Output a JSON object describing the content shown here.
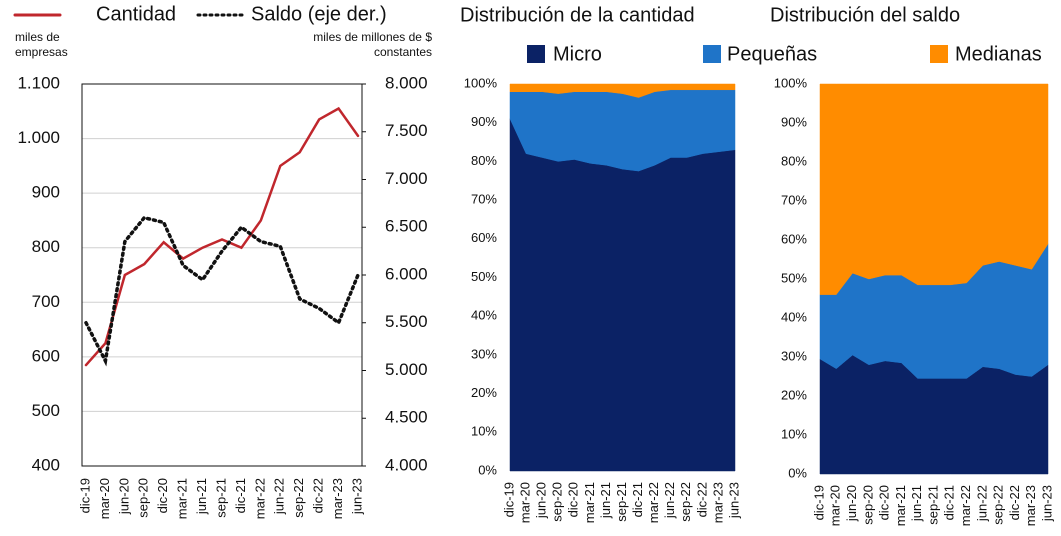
{
  "chart_data": [
    {
      "type": "line",
      "legend": "top-left",
      "y_label": "miles de empresas",
      "y2_label": "miles de millones de $ constantes",
      "categories": [
        "dic-19",
        "mar-20",
        "jun-20",
        "sep-20",
        "dic-20",
        "mar-21",
        "jun-21",
        "sep-21",
        "dic-21",
        "mar-22",
        "jun-22",
        "sep-22",
        "dic-22",
        "mar-23",
        "jun-23"
      ],
      "series": [
        {
          "name": "Cantidad",
          "color": "#c0272d",
          "style": "solid",
          "values": [
            585,
            625,
            750,
            770,
            810,
            780,
            800,
            815,
            800,
            850,
            950,
            975,
            1035,
            1055,
            1005
          ]
        },
        {
          "name": "Saldo (eje der.)",
          "color": "#111111",
          "style": "dotted",
          "axis": "y2",
          "values": [
            5500,
            5100,
            6350,
            6600,
            6550,
            6100,
            5950,
            6250,
            6500,
            6350,
            6300,
            5750,
            5650,
            5500,
            6000
          ]
        }
      ],
      "ylim": [
        400,
        1100
      ],
      "yticks": [
        400,
        500,
        600,
        700,
        800,
        900,
        {
          "value": 1000,
          "label": "1.000"
        },
        {
          "value": 1100,
          "label": "1.100"
        }
      ],
      "y2lim": [
        4000,
        8000
      ],
      "y2ticks": [
        {
          "value": 4000,
          "label": "4.000"
        },
        {
          "value": 4500,
          "label": "4.500"
        },
        {
          "value": 5000,
          "label": "5.000"
        },
        {
          "value": 5500,
          "label": "5.500"
        },
        {
          "value": 6000,
          "label": "6.000"
        },
        {
          "value": 6500,
          "label": "6.500"
        },
        {
          "value": 7000,
          "label": "7.000"
        },
        {
          "value": 7500,
          "label": "7.500"
        },
        {
          "value": 8000,
          "label": "8.000"
        }
      ],
      "grid": true
    },
    {
      "type": "area",
      "stacked": true,
      "legend": "top",
      "title": "Distribución de la cantidad",
      "categories": [
        "dic-19",
        "mar-20",
        "jun-20",
        "sep-20",
        "dic-20",
        "mar-21",
        "jun-21",
        "sep-21",
        "dic-21",
        "mar-22",
        "jun-22",
        "sep-22",
        "dic-22",
        "mar-23",
        "jun-23"
      ],
      "series": [
        {
          "name": "Micro",
          "color": "#0b2265",
          "values": [
            91,
            82,
            81,
            80,
            80.5,
            79.5,
            79,
            78,
            77.5,
            79,
            81,
            81,
            82,
            82.5,
            83
          ]
        },
        {
          "name": "Pequeñas",
          "color": "#1f74c8",
          "values": [
            7,
            16,
            17,
            17.5,
            17.5,
            18.5,
            19,
            19.5,
            19,
            19,
            17.5,
            17.5,
            16.5,
            16,
            15.5
          ]
        },
        {
          "name": "Medianas",
          "color": "#ff8c00",
          "values": [
            2,
            2,
            2,
            2.5,
            2,
            2,
            2,
            2.5,
            3.5,
            2,
            1.5,
            1.5,
            1.5,
            1.5,
            1.5
          ]
        }
      ],
      "ylim": [
        0,
        100
      ],
      "yticks": [
        {
          "value": 0,
          "label": "0%"
        },
        {
          "value": 10,
          "label": "10%"
        },
        {
          "value": 20,
          "label": "20%"
        },
        {
          "value": 30,
          "label": "30%"
        },
        {
          "value": 40,
          "label": "40%"
        },
        {
          "value": 50,
          "label": "50%"
        },
        {
          "value": 60,
          "label": "60%"
        },
        {
          "value": 70,
          "label": "70%"
        },
        {
          "value": 80,
          "label": "80%"
        },
        {
          "value": 90,
          "label": "90%"
        },
        {
          "value": 100,
          "label": "100%"
        }
      ]
    },
    {
      "type": "area",
      "stacked": true,
      "title": "Distribución del saldo",
      "categories": [
        "dic-19",
        "mar-20",
        "jun-20",
        "sep-20",
        "dic-20",
        "mar-21",
        "jun-21",
        "sep-21",
        "dic-21",
        "mar-22",
        "jun-22",
        "sep-22",
        "dic-22",
        "mar-23",
        "jun-23"
      ],
      "series": [
        {
          "color": "#0b2265",
          "values": [
            29.5,
            27,
            30.5,
            28,
            29,
            28.5,
            24.5,
            24.5,
            24.5,
            24.5,
            27.5,
            27,
            25.5,
            25,
            28
          ]
        },
        {
          "color": "#1f74c8",
          "values": [
            16.5,
            19,
            21,
            22,
            22,
            22.5,
            24,
            24,
            24,
            24.5,
            26,
            27.5,
            28,
            27.5,
            31
          ]
        },
        {
          "color": "#ff8c00",
          "values": [
            54,
            54,
            48.5,
            50,
            49,
            49,
            51.5,
            51.5,
            51.5,
            51,
            46.5,
            45.5,
            46.5,
            47.5,
            41
          ]
        }
      ],
      "ylim": [
        0,
        100
      ],
      "yticks": [
        {
          "value": 0,
          "label": "0%"
        },
        {
          "value": 10,
          "label": "10%"
        },
        {
          "value": 20,
          "label": "20%"
        },
        {
          "value": 30,
          "label": "30%"
        },
        {
          "value": 40,
          "label": "40%"
        },
        {
          "value": 50,
          "label": "50%"
        },
        {
          "value": 60,
          "label": "60%"
        },
        {
          "value": 70,
          "label": "70%"
        },
        {
          "value": 80,
          "label": "80%"
        },
        {
          "value": 90,
          "label": "90%"
        },
        {
          "value": 100,
          "label": "100%"
        }
      ]
    }
  ]
}
